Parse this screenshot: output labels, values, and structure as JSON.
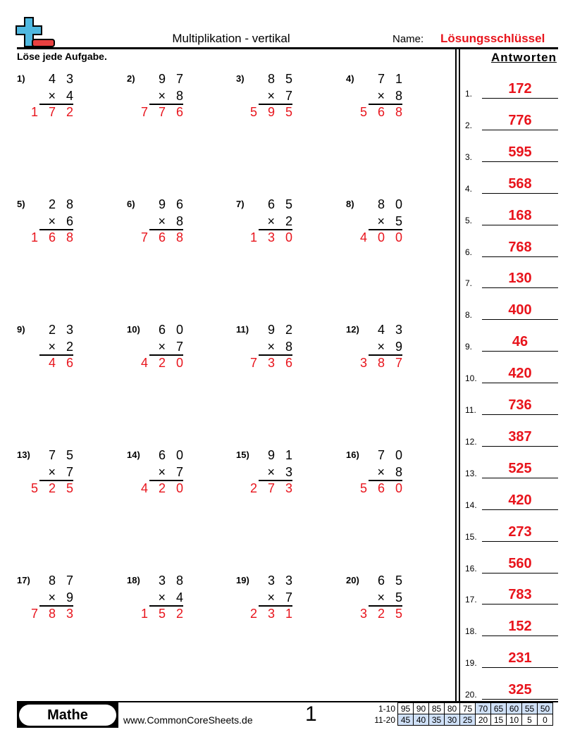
{
  "header": {
    "title": "Multiplikation - vertikal",
    "name_label": "Name:",
    "name_value": "Lösungsschlüssel",
    "instructions": "Löse jede Aufgabe.",
    "answers_heading": "Antworten"
  },
  "problems": [
    {
      "n": "1)",
      "a": "4 3",
      "b": "× 4",
      "ans": "1 7 2"
    },
    {
      "n": "2)",
      "a": "9 7",
      "b": "× 8",
      "ans": "7 7 6"
    },
    {
      "n": "3)",
      "a": "8 5",
      "b": "× 7",
      "ans": "5 9 5"
    },
    {
      "n": "4)",
      "a": "7 1",
      "b": "× 8",
      "ans": "5 6 8"
    },
    {
      "n": "5)",
      "a": "2 8",
      "b": "× 6",
      "ans": "1 6 8"
    },
    {
      "n": "6)",
      "a": "9 6",
      "b": "× 8",
      "ans": "7 6 8"
    },
    {
      "n": "7)",
      "a": "6 5",
      "b": "× 2",
      "ans": "1 3 0"
    },
    {
      "n": "8)",
      "a": "8 0",
      "b": "× 5",
      "ans": "4 0 0"
    },
    {
      "n": "9)",
      "a": "2 3",
      "b": "× 2",
      "ans": "4 6"
    },
    {
      "n": "10)",
      "a": "6 0",
      "b": "× 7",
      "ans": "4 2 0"
    },
    {
      "n": "11)",
      "a": "9 2",
      "b": "× 8",
      "ans": "7 3 6"
    },
    {
      "n": "12)",
      "a": "4 3",
      "b": "× 9",
      "ans": "3 8 7"
    },
    {
      "n": "13)",
      "a": "7 5",
      "b": "× 7",
      "ans": "5 2 5"
    },
    {
      "n": "14)",
      "a": "6 0",
      "b": "× 7",
      "ans": "4 2 0"
    },
    {
      "n": "15)",
      "a": "9 1",
      "b": "× 3",
      "ans": "2 7 3"
    },
    {
      "n": "16)",
      "a": "7 0",
      "b": "× 8",
      "ans": "5 6 0"
    },
    {
      "n": "17)",
      "a": "8 7",
      "b": "× 9",
      "ans": "7 8 3"
    },
    {
      "n": "18)",
      "a": "3 8",
      "b": "× 4",
      "ans": "1 5 2"
    },
    {
      "n": "19)",
      "a": "3 3",
      "b": "× 7",
      "ans": "2 3 1"
    },
    {
      "n": "20)",
      "a": "6 5",
      "b": "× 5",
      "ans": "3 2 5"
    }
  ],
  "answers": [
    {
      "n": "1.",
      "v": "172"
    },
    {
      "n": "2.",
      "v": "776"
    },
    {
      "n": "3.",
      "v": "595"
    },
    {
      "n": "4.",
      "v": "568"
    },
    {
      "n": "5.",
      "v": "168"
    },
    {
      "n": "6.",
      "v": "768"
    },
    {
      "n": "7.",
      "v": "130"
    },
    {
      "n": "8.",
      "v": "400"
    },
    {
      "n": "9.",
      "v": "46"
    },
    {
      "n": "10.",
      "v": "420"
    },
    {
      "n": "11.",
      "v": "736"
    },
    {
      "n": "12.",
      "v": "387"
    },
    {
      "n": "13.",
      "v": "525"
    },
    {
      "n": "14.",
      "v": "420"
    },
    {
      "n": "15.",
      "v": "273"
    },
    {
      "n": "16.",
      "v": "560"
    },
    {
      "n": "17.",
      "v": "783"
    },
    {
      "n": "18.",
      "v": "152"
    },
    {
      "n": "19.",
      "v": "231"
    },
    {
      "n": "20.",
      "v": "325"
    }
  ],
  "footer": {
    "subject": "Mathe",
    "website": "www.CommonCoreSheets.de",
    "page_number": "1",
    "score_rows": [
      {
        "label": "1-10",
        "values": [
          "95",
          "90",
          "85",
          "80",
          "75",
          "70",
          "65",
          "60",
          "55",
          "50"
        ]
      },
      {
        "label": "11-20",
        "values": [
          "45",
          "40",
          "35",
          "30",
          "25",
          "20",
          "15",
          "10",
          "5",
          "0"
        ]
      }
    ]
  },
  "colors": {
    "answer": "#e8141c",
    "logo_plus": "#4fb8e0",
    "logo_minus": "#e84040",
    "score_highlight": "#cfe0f7"
  }
}
